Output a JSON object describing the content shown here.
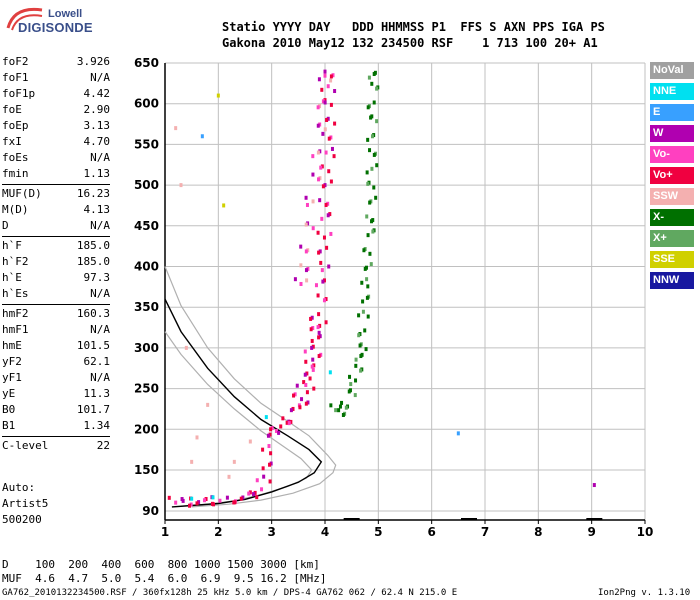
{
  "logo": {
    "line1": "Lowell",
    "line2": "DIGISONDE"
  },
  "header": {
    "line1": "Statio YYYY DAY   DDD HHMMSS P1  FFS S AXN PPS IGA PS",
    "line2": "Gakona 2010 May12 132 234500 RSF    1 713 100 20+ A1"
  },
  "params": [
    [
      [
        "foF2",
        "3.926"
      ],
      [
        "foF1",
        "N/A"
      ],
      [
        "foF1p",
        "4.42"
      ],
      [
        "foE",
        "2.90"
      ],
      [
        "foEp",
        "3.13"
      ],
      [
        "fxI",
        "4.70"
      ],
      [
        "foEs",
        "N/A"
      ],
      [
        "fmin",
        "1.13"
      ]
    ],
    [
      [
        "MUF(D)",
        "16.23"
      ],
      [
        "M(D)",
        "4.13"
      ],
      [
        "D",
        "N/A"
      ]
    ],
    [
      [
        "h`F",
        "185.0"
      ],
      [
        "h`F2",
        "185.0"
      ],
      [
        "h`E",
        "97.3"
      ],
      [
        "h`Es",
        "N/A"
      ]
    ],
    [
      [
        "hmF2",
        "160.3"
      ],
      [
        "hmF1",
        "N/A"
      ],
      [
        "hmE",
        "101.5"
      ],
      [
        "yF2",
        "62.1"
      ],
      [
        "yF1",
        "N/A"
      ],
      [
        "yE",
        "11.3"
      ],
      [
        "B0",
        "101.7"
      ],
      [
        "B1",
        "1.34"
      ]
    ],
    [
      [
        "C-level",
        "22"
      ]
    ]
  ],
  "auto": {
    "line1": "Auto:",
    "line2": "Artist5",
    "line3": "500200"
  },
  "legend": [
    {
      "label": "NoVal",
      "color": "#a0a0a0"
    },
    {
      "label": "NNE",
      "color": "#00e0f0"
    },
    {
      "label": "E",
      "color": "#38a0ff"
    },
    {
      "label": "W",
      "color": "#b000b0"
    },
    {
      "label": "Vo-",
      "color": "#ff40c0"
    },
    {
      "label": "Vo+",
      "color": "#f00040"
    },
    {
      "label": "SSW",
      "color": "#f4b0b0"
    },
    {
      "label": "X-",
      "color": "#007000"
    },
    {
      "label": "X+",
      "color": "#60a860"
    },
    {
      "label": "SSE",
      "color": "#d0d000"
    },
    {
      "label": "NNW",
      "color": "#1818a0"
    }
  ],
  "dtable": {
    "row1": "D    100  200  400  600  800 1000 1500 3000 [km]",
    "row2": "MUF  4.6  4.7  5.0  5.4  6.0  6.9  9.5 16.2 [MHz]"
  },
  "footer": {
    "left": "GA762_2010132234500.RSF / 360fx128h 25 kHz 5.0 km / DPS-4 GA762 062 / 62.4 N 215.0 E",
    "right": "Ion2Png v. 1.3.10"
  },
  "chart_data": {
    "type": "scatter",
    "xlim": [
      1,
      10
    ],
    "ylim": [
      90,
      650
    ],
    "xticks": [
      "1",
      "2",
      "3",
      "4",
      "5",
      "6",
      "7",
      "8",
      "9",
      "10"
    ],
    "yticks": [
      "90",
      "150",
      "200",
      "250",
      "300",
      "350",
      "400",
      "450",
      "500",
      "550",
      "600",
      "650"
    ],
    "grid": true,
    "legend_position": "right",
    "profile_curve": [
      [
        1.0,
        360
      ],
      [
        1.3,
        320
      ],
      [
        1.8,
        275
      ],
      [
        2.3,
        240
      ],
      [
        2.8,
        212
      ],
      [
        3.3,
        192
      ],
      [
        3.7,
        175
      ],
      [
        3.93,
        160
      ],
      [
        3.8,
        146
      ],
      [
        3.5,
        132
      ],
      [
        3.0,
        118
      ],
      [
        2.5,
        107
      ],
      [
        2.0,
        101
      ],
      [
        1.5,
        98
      ],
      [
        1.13,
        96
      ]
    ],
    "profile_upper": [
      [
        1.0,
        400
      ],
      [
        1.3,
        352
      ],
      [
        1.8,
        300
      ],
      [
        2.3,
        262
      ],
      [
        2.8,
        232
      ],
      [
        3.3,
        210
      ],
      [
        3.7,
        192
      ],
      [
        4.05,
        168
      ],
      [
        4.2,
        156
      ],
      [
        4.15,
        146
      ],
      [
        3.9,
        130
      ],
      [
        3.4,
        116
      ],
      [
        2.8,
        106
      ],
      [
        2.2,
        100
      ],
      [
        1.5,
        96
      ]
    ],
    "profile_lower": [
      [
        1.0,
        320
      ],
      [
        1.3,
        292
      ],
      [
        1.8,
        255
      ],
      [
        2.3,
        225
      ],
      [
        2.8,
        198
      ],
      [
        3.2,
        180
      ],
      [
        3.55,
        164
      ],
      [
        3.75,
        150
      ],
      [
        3.65,
        138
      ],
      [
        3.3,
        126
      ],
      [
        2.8,
        114
      ],
      [
        2.3,
        105
      ],
      [
        1.8,
        100
      ],
      [
        1.3,
        97
      ]
    ],
    "o_trace": [
      [
        1.2,
        104
      ],
      [
        1.4,
        103
      ],
      [
        1.6,
        103
      ],
      [
        1.8,
        104
      ],
      [
        2.0,
        105
      ],
      [
        2.2,
        106
      ],
      [
        2.4,
        108
      ],
      [
        2.6,
        112
      ],
      [
        2.75,
        120
      ],
      [
        2.85,
        135
      ],
      [
        2.9,
        155
      ],
      [
        2.95,
        175
      ],
      [
        3.0,
        195
      ],
      [
        3.1,
        200
      ],
      [
        3.2,
        205
      ],
      [
        3.3,
        212
      ],
      [
        3.4,
        225
      ],
      [
        3.5,
        240
      ],
      [
        3.6,
        258
      ],
      [
        3.7,
        280
      ],
      [
        3.75,
        300
      ],
      [
        3.8,
        320
      ],
      [
        3.85,
        340
      ],
      [
        3.9,
        360
      ],
      [
        3.93,
        380
      ],
      [
        3.95,
        400
      ],
      [
        3.97,
        420
      ],
      [
        3.99,
        440
      ],
      [
        4.0,
        460
      ],
      [
        4.02,
        480
      ],
      [
        4.03,
        500
      ],
      [
        4.04,
        520
      ],
      [
        4.05,
        540
      ],
      [
        4.05,
        560
      ],
      [
        4.06,
        580
      ],
      [
        4.06,
        600
      ],
      [
        4.06,
        620
      ],
      [
        4.06,
        635
      ],
      [
        3.65,
        230
      ],
      [
        3.7,
        250
      ],
      [
        3.75,
        270
      ],
      [
        3.8,
        290
      ],
      [
        3.85,
        310
      ],
      [
        3.9,
        330
      ]
    ],
    "x_trace": [
      [
        4.2,
        225
      ],
      [
        4.3,
        222
      ],
      [
        4.4,
        228
      ],
      [
        4.5,
        245
      ],
      [
        4.55,
        260
      ],
      [
        4.6,
        275
      ],
      [
        4.65,
        290
      ],
      [
        4.68,
        300
      ],
      [
        4.7,
        320
      ],
      [
        4.72,
        340
      ],
      [
        4.75,
        360
      ],
      [
        4.78,
        380
      ],
      [
        4.8,
        400
      ],
      [
        4.82,
        420
      ],
      [
        4.83,
        440
      ],
      [
        4.85,
        460
      ],
      [
        4.86,
        480
      ],
      [
        4.87,
        500
      ],
      [
        4.88,
        520
      ],
      [
        4.88,
        540
      ],
      [
        4.89,
        560
      ],
      [
        4.9,
        580
      ],
      [
        4.9,
        600
      ],
      [
        4.9,
        620
      ],
      [
        4.9,
        635
      ]
    ],
    "w_trace": [
      [
        3.55,
        380
      ],
      [
        3.6,
        400
      ],
      [
        3.65,
        420
      ],
      [
        3.7,
        450
      ],
      [
        3.75,
        480
      ],
      [
        3.8,
        510
      ],
      [
        3.85,
        540
      ],
      [
        3.9,
        570
      ],
      [
        3.95,
        600
      ],
      [
        4.0,
        630
      ]
    ],
    "scatter_misc": [
      [
        1.2,
        570,
        "#f4b0b0"
      ],
      [
        1.3,
        500,
        "#f4b0b0"
      ],
      [
        1.5,
        160,
        "#f4b0b0"
      ],
      [
        1.6,
        190,
        "#f4b0b0"
      ],
      [
        1.4,
        300,
        "#f4b0b0"
      ],
      [
        1.8,
        230,
        "#f4b0b0"
      ],
      [
        2.3,
        160,
        "#f4b0b0"
      ],
      [
        2.6,
        185,
        "#f4b0b0"
      ],
      [
        2.2,
        140,
        "#f4b0b0"
      ],
      [
        2.0,
        610,
        "#d0d000"
      ],
      [
        2.1,
        475,
        "#d0d000"
      ],
      [
        1.7,
        560,
        "#38a0ff"
      ],
      [
        6.5,
        195,
        "#38a0ff"
      ],
      [
        9.05,
        128,
        "#b000b0"
      ],
      [
        1.5,
        108,
        "#00e0f0"
      ],
      [
        1.9,
        110,
        "#00e0f0"
      ],
      [
        2.9,
        215,
        "#00e0f0"
      ],
      [
        4.1,
        270,
        "#00e0f0"
      ]
    ]
  }
}
